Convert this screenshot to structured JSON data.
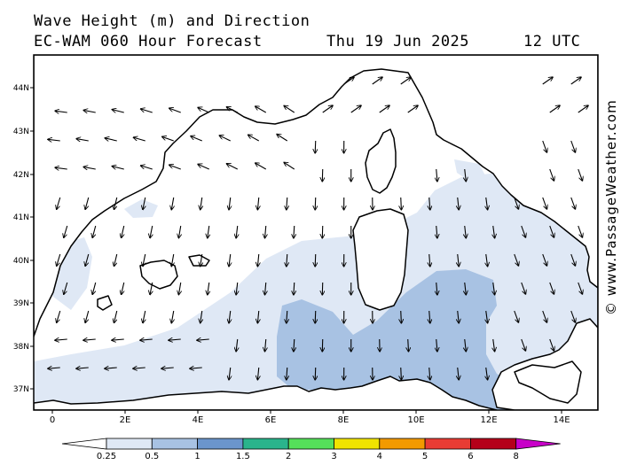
{
  "header": {
    "line1": "Wave Height (m) and Direction",
    "model": "EC-WAM 060 Hour Forecast",
    "date": "Thu 19 Jun 2025",
    "time": "12 UTC"
  },
  "credit": "© www.PassageWeather.com",
  "map": {
    "lat_ticks": [
      "44N",
      "43N",
      "42N",
      "41N",
      "40N",
      "39N",
      "38N",
      "37N"
    ],
    "lon_ticks": [
      "0",
      "2E",
      "4E",
      "6E",
      "8E",
      "10E",
      "12E",
      "14E"
    ],
    "lon_range": [
      -0.5,
      15
    ],
    "lat_range": [
      36.5,
      44.8
    ]
  },
  "legend": {
    "labels": [
      "0.25",
      "0.5",
      "1",
      "1.5",
      "2",
      "3",
      "4",
      "5",
      "6",
      "8"
    ],
    "colors": [
      "#ffffff",
      "#dfe8f5",
      "#a8c2e3",
      "#6b95cc",
      "#2ab48c",
      "#55e05a",
      "#f0e400",
      "#f29a00",
      "#e83c34",
      "#b5001a",
      "#c800c8"
    ]
  }
}
